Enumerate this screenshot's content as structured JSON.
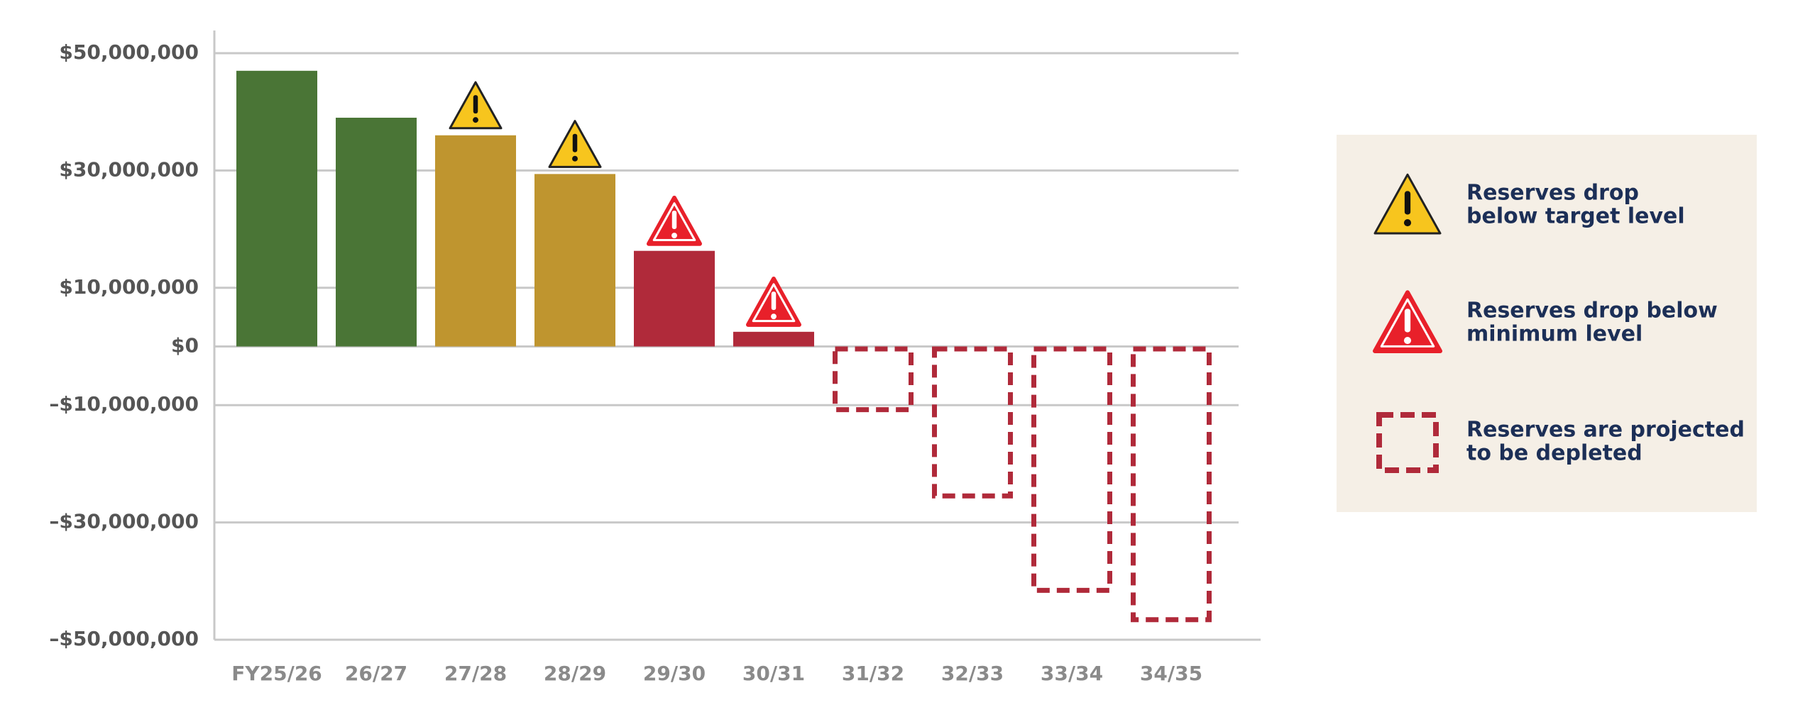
{
  "chart_data": {
    "type": "bar",
    "categories": [
      "FY25/26",
      "26/27",
      "27/28",
      "28/29",
      "29/30",
      "30/31",
      "31/32",
      "32/33",
      "33/34",
      "34/35"
    ],
    "values": [
      47000000,
      39000000,
      36000000,
      29400000,
      16300000,
      2500000,
      -11200000,
      -25900000,
      -42000000,
      -47000000
    ],
    "colors": [
      "#4a7536",
      "#4a7536",
      "#bf952f",
      "#bf952f",
      "#b02a3a",
      "#b02a3a",
      "#b02a3a",
      "#b02a3a",
      "#b02a3a",
      "#b02a3a"
    ],
    "ylim": [
      -50000000,
      50000000
    ],
    "yticks": [
      {
        "value": 50000000,
        "label": "$50,000,000"
      },
      {
        "value": 30000000,
        "label": "$30,000,000"
      },
      {
        "value": 10000000,
        "label": "$10,000,000"
      },
      {
        "value": 0,
        "label": "$0"
      },
      {
        "value": -10000000,
        "label": "–$10,000,000"
      },
      {
        "value": -30000000,
        "label": "–$30,000,000"
      },
      {
        "value": -50000000,
        "label": "–$50,000,000"
      }
    ],
    "grid": true,
    "legend": [
      {
        "lines": [
          "Reserves drop",
          "below target level"
        ],
        "marker": "triangle",
        "color": "#f7c51e",
        "mark_color": "#111111",
        "bar_color": "#bf952f"
      },
      {
        "lines": [
          "Reserves drop below",
          "minimum level"
        ],
        "marker": "triangle",
        "color": "#e8202a",
        "mark_color": "#ffffff",
        "bar_color": "#b02a3a"
      },
      {
        "lines": [
          "Reserves are projected",
          "to be depleted"
        ],
        "marker": "dashed-box",
        "color": "#b02a3a"
      }
    ]
  }
}
